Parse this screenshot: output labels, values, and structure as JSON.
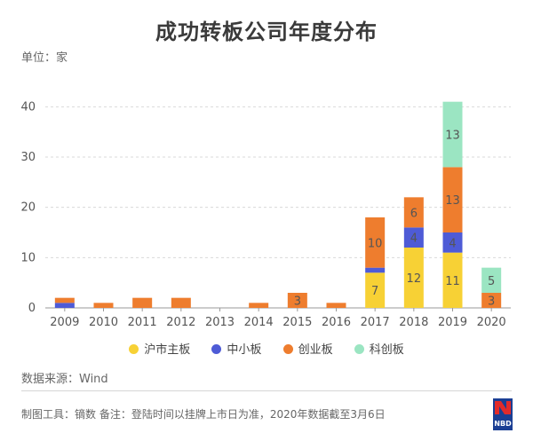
{
  "title": "成功转板公司年度分布",
  "unit_label": "单位：家",
  "source": "数据来源：Wind",
  "footnote": "制图工具：镝数 备注：登陆时间以挂牌上市日为准，2020年数据截至3月6日",
  "logo_text": "NBD",
  "colors": {
    "sh_main": "#F7D135",
    "sme": "#4E5BD6",
    "chinext": "#EE7D2E",
    "star": "#9BE5C2"
  },
  "chart_data": {
    "type": "bar",
    "stacked": true,
    "categories": [
      "2009",
      "2010",
      "2011",
      "2012",
      "2013",
      "2014",
      "2015",
      "2016",
      "2017",
      "2018",
      "2019",
      "2020"
    ],
    "series": [
      {
        "name": "沪市主板",
        "key": "sh_main",
        "values": [
          0,
          0,
          0,
          0,
          0,
          0,
          0,
          0,
          7,
          12,
          11,
          0
        ]
      },
      {
        "name": "中小板",
        "key": "sme",
        "values": [
          1,
          0,
          0,
          0,
          0,
          0,
          0,
          0,
          1,
          4,
          4,
          0
        ]
      },
      {
        "name": "创业板",
        "key": "chinext",
        "values": [
          1,
          1,
          2,
          2,
          0,
          1,
          3,
          1,
          10,
          6,
          13,
          3
        ]
      },
      {
        "name": "科创板",
        "key": "star",
        "values": [
          0,
          0,
          0,
          0,
          0,
          0,
          0,
          0,
          0,
          0,
          13,
          5
        ]
      }
    ],
    "ylim": [
      0,
      45
    ],
    "yticks": [
      0,
      10,
      20,
      30,
      40
    ],
    "grid": true,
    "legend_position": "bottom"
  }
}
